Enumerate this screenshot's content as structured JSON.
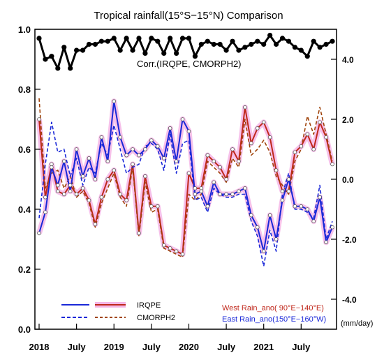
{
  "chart_data": {
    "type": "line",
    "title": "Tropical rainfall(15°S−15°N) Comparison",
    "x_tick_labels": [
      "2018",
      "July",
      "2019",
      "July",
      "2020",
      "July",
      "2021",
      "July"
    ],
    "x_tick_months": [
      0,
      6,
      12,
      18,
      24,
      30,
      36,
      42
    ],
    "x_range": [
      0,
      47
    ],
    "left_axis": {
      "ylim": [
        0.0,
        1.0
      ],
      "ticks": [
        0.0,
        0.2,
        0.4,
        0.6,
        0.8,
        1.0
      ],
      "tick_labels": [
        "0.0",
        "0.2",
        "0.4",
        "0.6",
        "0.8",
        "1.0"
      ]
    },
    "right_axis": {
      "ylim": [
        -5.0,
        5.0
      ],
      "ticks": [
        -4.0,
        -2.0,
        0.0,
        2.0,
        4.0
      ],
      "tick_labels": [
        "-4.0",
        "-2.0",
        "0.0",
        "2.0",
        "4.0"
      ],
      "unit": "(mm/day)"
    },
    "corr_label": "Corr.(IRQPE, CMORPH2)",
    "corr_values": [
      0.97,
      0.9,
      0.91,
      0.87,
      0.94,
      0.87,
      0.93,
      0.93,
      0.95,
      0.95,
      0.96,
      0.96,
      0.97,
      0.93,
      0.97,
      0.93,
      0.97,
      0.92,
      0.97,
      0.96,
      0.92,
      0.97,
      0.92,
      0.97,
      0.97,
      0.91,
      0.95,
      0.96,
      0.95,
      0.95,
      0.93,
      0.96,
      0.93,
      0.94,
      0.95,
      0.96,
      0.95,
      0.98,
      0.95,
      0.97,
      0.96,
      0.94,
      0.93,
      0.91,
      0.96,
      0.94,
      0.95,
      0.96
    ],
    "series": [
      {
        "legend": "west-solid",
        "axis": "right",
        "color": "#c0281c",
        "dash": false,
        "marker": true,
        "values": [
          2.0,
          -0.6,
          0.5,
          -0.4,
          -0.5,
          -0.2,
          -0.5,
          -0.3,
          -0.7,
          -1.5,
          -0.6,
          0.0,
          0.3,
          -0.5,
          -0.7,
          0.5,
          -1.8,
          0.1,
          -0.9,
          -0.9,
          -2.2,
          -2.3,
          -2.4,
          -2.5,
          0.2,
          -0.3,
          -0.3,
          0.8,
          0.6,
          0.4,
          0.0,
          1.0,
          0.6,
          2.4,
          1.2,
          1.7,
          1.9,
          1.4,
          0.3,
          -0.4,
          -0.4,
          0.9,
          1.1,
          1.5,
          1.0,
          1.9,
          1.4,
          0.5
        ]
      },
      {
        "legend": "west-dashed",
        "axis": "right",
        "color": "#a0440c",
        "dash": true,
        "marker": false,
        "values": [
          2.7,
          -0.3,
          0.2,
          0.3,
          -0.3,
          0.1,
          -0.6,
          -0.4,
          -0.8,
          -1.6,
          -0.8,
          -0.3,
          0.2,
          -0.6,
          -0.9,
          0.4,
          -1.9,
          -0.1,
          -1.1,
          -1.0,
          -2.3,
          -2.4,
          -2.5,
          -2.6,
          -0.5,
          -0.7,
          -0.5,
          0.6,
          0.4,
          0.2,
          -0.1,
          0.7,
          0.4,
          2.0,
          0.8,
          1.0,
          1.3,
          0.9,
          0.1,
          -0.2,
          -0.5,
          0.6,
          1.0,
          2.1,
          1.5,
          2.4,
          1.5,
          0.6
        ]
      },
      {
        "legend": "east-solid",
        "axis": "right",
        "color": "#1a28d8",
        "dash": false,
        "marker": true,
        "values": [
          -1.8,
          -1.1,
          0.4,
          -0.2,
          0.6,
          -0.4,
          1.0,
          0.1,
          0.7,
          0.0,
          1.4,
          0.6,
          2.6,
          1.4,
          0.8,
          1.0,
          0.8,
          1.0,
          1.3,
          1.1,
          0.7,
          1.7,
          0.6,
          2.0,
          1.6,
          -0.5,
          -0.4,
          -0.9,
          -0.1,
          -0.5,
          -0.5,
          -0.5,
          -0.4,
          -0.3,
          -1.2,
          -1.6,
          -2.4,
          -1.2,
          -2.0,
          -0.7,
          0.0,
          -0.9,
          -0.9,
          -1.0,
          -1.4,
          -0.6,
          -2.1,
          -1.6
        ]
      },
      {
        "legend": "east-dashed",
        "axis": "right",
        "color": "#1a28d8",
        "dash": true,
        "marker": false,
        "values": [
          -1.3,
          0.5,
          1.9,
          0.9,
          1.0,
          0.1,
          0.7,
          -0.2,
          0.4,
          0.2,
          1.2,
          0.8,
          1.8,
          1.0,
          0.2,
          0.4,
          0.5,
          1.1,
          1.2,
          1.0,
          0.3,
          1.5,
          0.2,
          1.2,
          1.3,
          -0.7,
          -0.6,
          -1.1,
          -0.3,
          -0.5,
          -0.6,
          -0.6,
          -0.5,
          -0.5,
          -1.4,
          -1.9,
          -2.9,
          -1.7,
          -2.4,
          -0.5,
          0.2,
          -1.0,
          -1.0,
          -1.1,
          -1.3,
          -0.2,
          -2.0,
          -1.4
        ]
      }
    ],
    "legend": {
      "irqpe_label": "IRQPE",
      "cmorph_label": "CMORPH2",
      "west_label": "West Rain_ano( 90°E−140°E)",
      "east_label": "East Rain_ano(150°E−160°W)",
      "west_color": "#c0281c",
      "east_color": "#1a28d8",
      "highlight_color": "#f4b6e6"
    }
  }
}
